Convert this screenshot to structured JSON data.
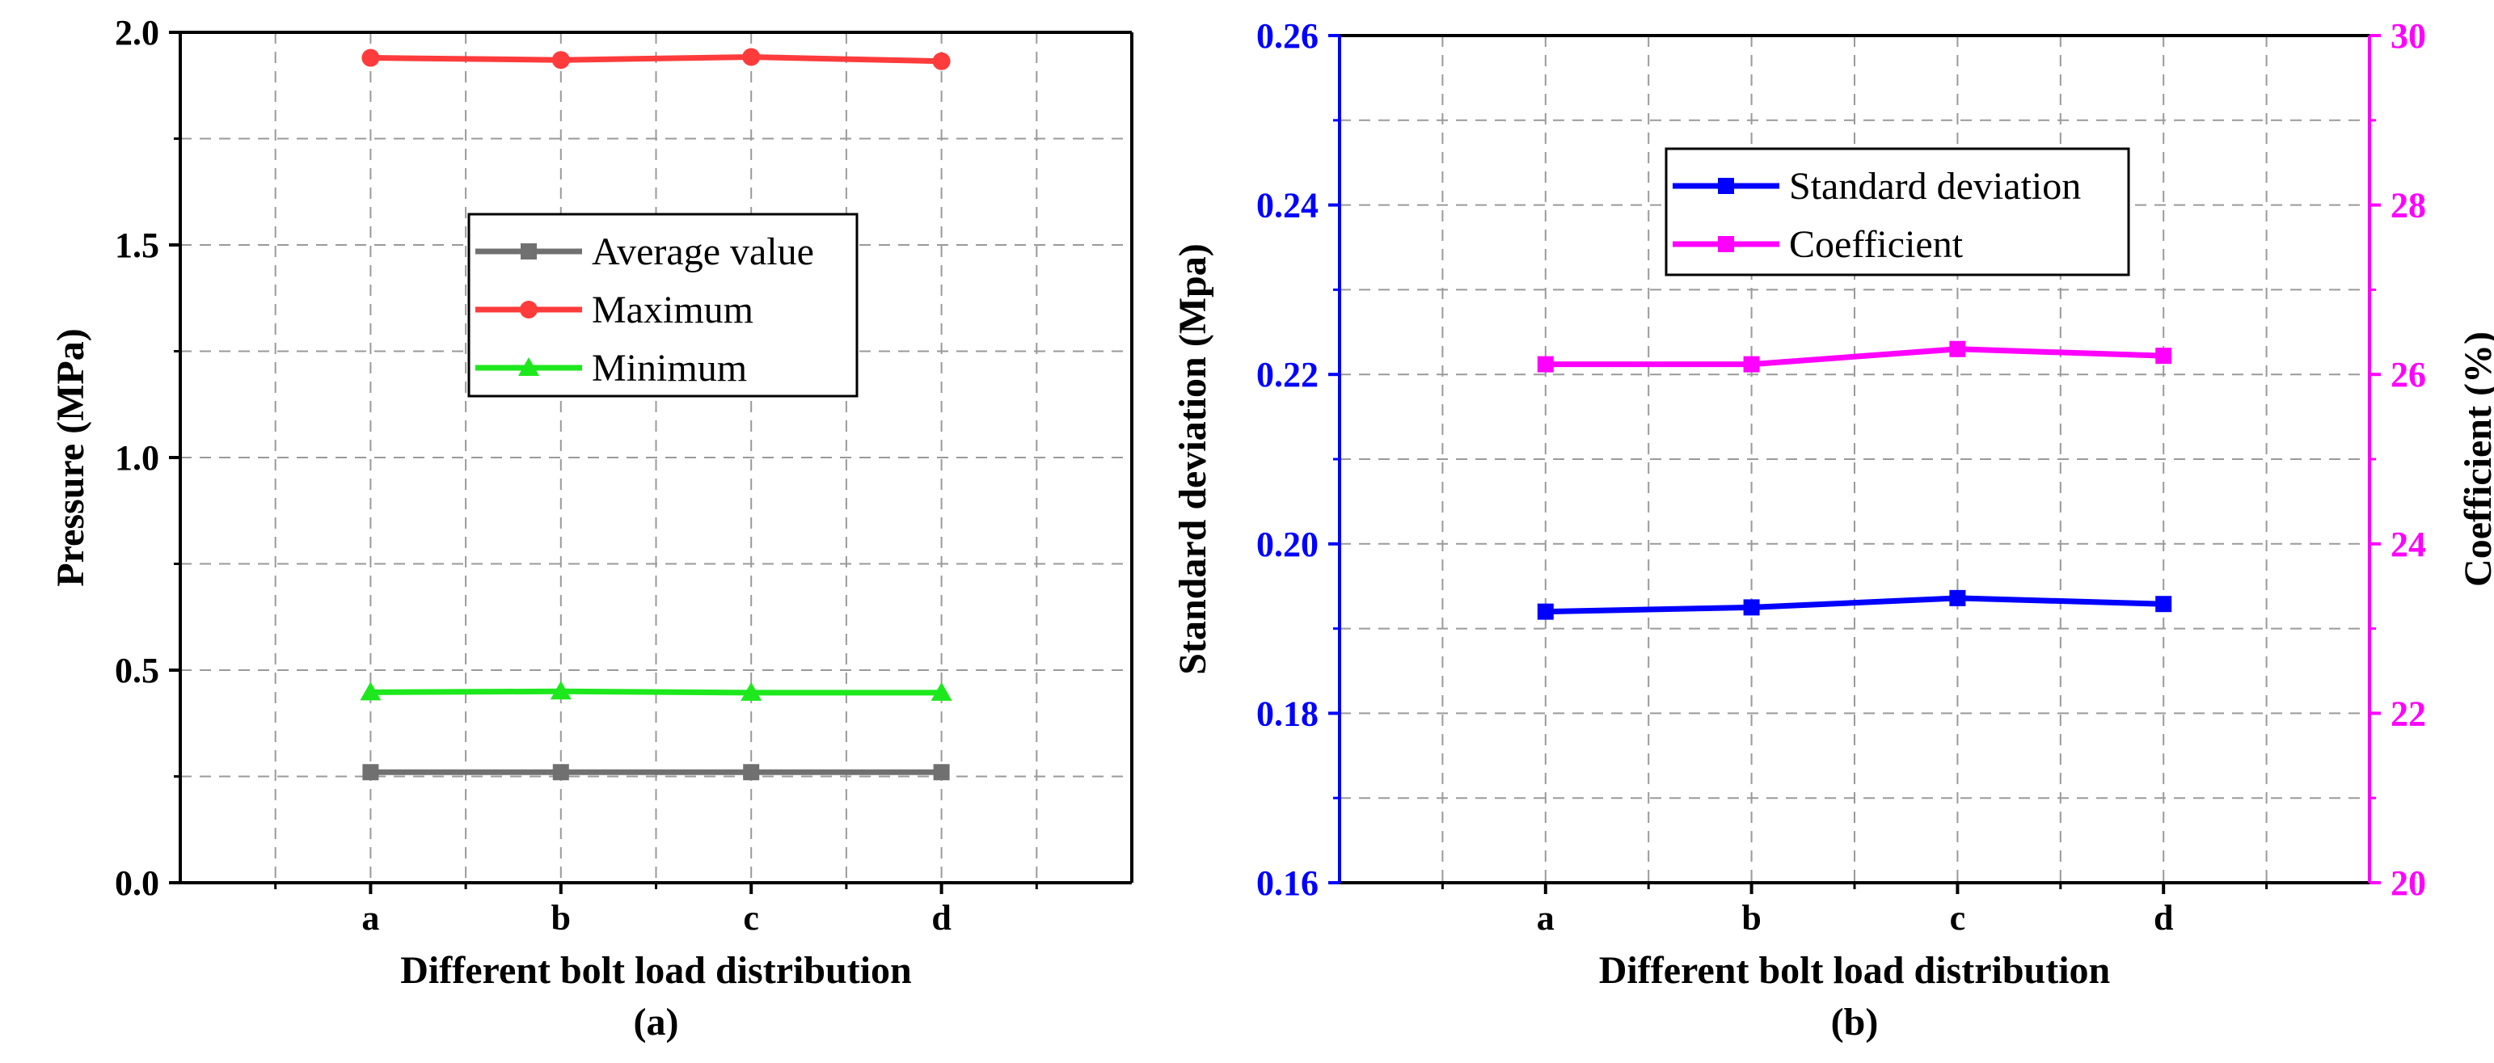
{
  "chart_data": [
    {
      "id": "a",
      "type": "line",
      "panel_label": "(a)",
      "categories": [
        "a",
        "b",
        "c",
        "d"
      ],
      "xlabel": "Different bolt load distribution",
      "ylabel": "Pressure (MPa)",
      "ylim": [
        0.0,
        2.0
      ],
      "yticks": [
        "0.0",
        "0.5",
        "1.0",
        "1.5",
        "2.0"
      ],
      "grid": true,
      "legend_position": "center-right",
      "series": [
        {
          "name": "Average value",
          "color": "#707070",
          "marker": "square",
          "values": [
            0.26,
            0.26,
            0.26,
            0.26
          ]
        },
        {
          "name": "Maximum",
          "color": "#ff3b3b",
          "marker": "circle",
          "values": [
            1.94,
            1.935,
            1.942,
            1.932
          ]
        },
        {
          "name": "Minimum",
          "color": "#1de81d",
          "marker": "triangle",
          "values": [
            0.448,
            0.45,
            0.447,
            0.447
          ]
        }
      ]
    },
    {
      "id": "b",
      "type": "line",
      "panel_label": "(b)",
      "categories": [
        "a",
        "b",
        "c",
        "d"
      ],
      "xlabel": "Different bolt load distribution",
      "ylabel": "Standard deviation (Mpa)",
      "ylim": [
        0.16,
        0.26
      ],
      "yticks": [
        "0.16",
        "0.18",
        "0.20",
        "0.22",
        "0.24",
        "0.26"
      ],
      "ylabel_right": "Coefficient (%)",
      "ylim_right": [
        20,
        30
      ],
      "yticks_right": [
        "20",
        "22",
        "24",
        "26",
        "28",
        "30"
      ],
      "left_axis_color": "#0000ff",
      "right_axis_color": "#ff00ff",
      "grid": true,
      "legend_position": "top-center",
      "series": [
        {
          "name": "Standard deviation",
          "color": "#0000ff",
          "marker": "square",
          "axis": "left",
          "values": [
            0.192,
            0.1925,
            0.1936,
            0.1929
          ]
        },
        {
          "name": "Coefficient",
          "color": "#ff00ff",
          "marker": "square",
          "axis": "right",
          "values": [
            26.12,
            26.12,
            26.3,
            26.22
          ]
        }
      ]
    }
  ]
}
